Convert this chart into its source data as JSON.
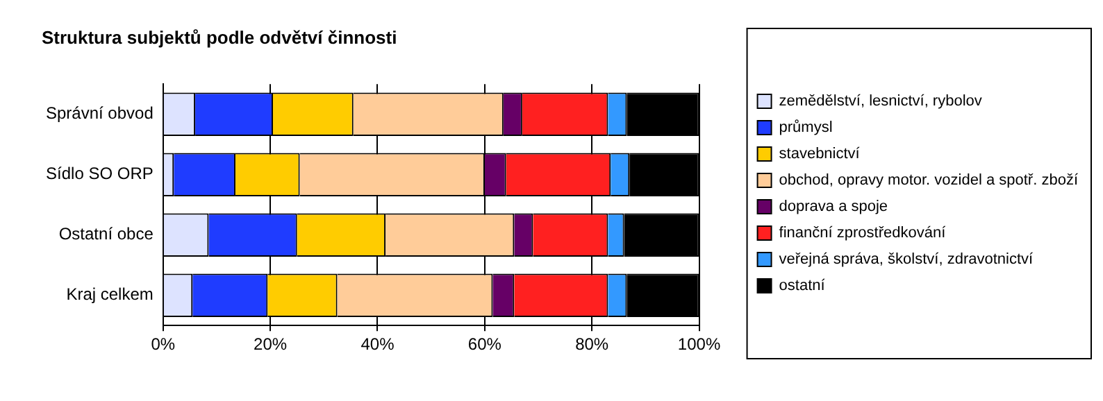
{
  "chart_data": {
    "type": "bar",
    "title": "Struktura subjektů podle odvětví činnosti",
    "orientation": "horizontal",
    "stacked": true,
    "categories": [
      "Správní obvod",
      "Sídlo SO ORP",
      "Ostatní obce",
      "Kraj celkem"
    ],
    "series": [
      {
        "name": "zemědělství, lesnictví, rybolov",
        "color": "#dde3ff",
        "values": [
          6,
          2,
          8.5,
          5.5
        ]
      },
      {
        "name": "průmysl",
        "color": "#1f3cff",
        "values": [
          14.5,
          11.5,
          16.5,
          14
        ]
      },
      {
        "name": "stavebnictví",
        "color": "#ffcc00",
        "values": [
          15,
          12,
          16.5,
          13
        ]
      },
      {
        "name": "obchod, opravy motor. vozidel a spotř. zboží",
        "color": "#ffcc99",
        "values": [
          28,
          34.5,
          24,
          29
        ]
      },
      {
        "name": "doprava a spoje",
        "color": "#660066",
        "values": [
          3.5,
          4,
          3.5,
          4
        ]
      },
      {
        "name": "finanční zprostředkování",
        "color": "#ff2020",
        "values": [
          16,
          19.5,
          14,
          17.5
        ]
      },
      {
        "name": "veřejná správa, školství, zdravotnictví",
        "color": "#3399ff",
        "values": [
          3.5,
          3.5,
          3,
          3.5
        ]
      },
      {
        "name": "ostatní",
        "color": "#000000",
        "values": [
          13.5,
          13,
          14,
          13.5
        ]
      }
    ],
    "xlim": [
      0,
      100
    ],
    "xticks": [
      {
        "value": 0,
        "label": "0%"
      },
      {
        "value": 20,
        "label": "20%"
      },
      {
        "value": 40,
        "label": "40%"
      },
      {
        "value": 60,
        "label": "60%"
      },
      {
        "value": 80,
        "label": "80%"
      },
      {
        "value": 100,
        "label": "100%"
      }
    ],
    "grid": "x",
    "legend": "right"
  }
}
